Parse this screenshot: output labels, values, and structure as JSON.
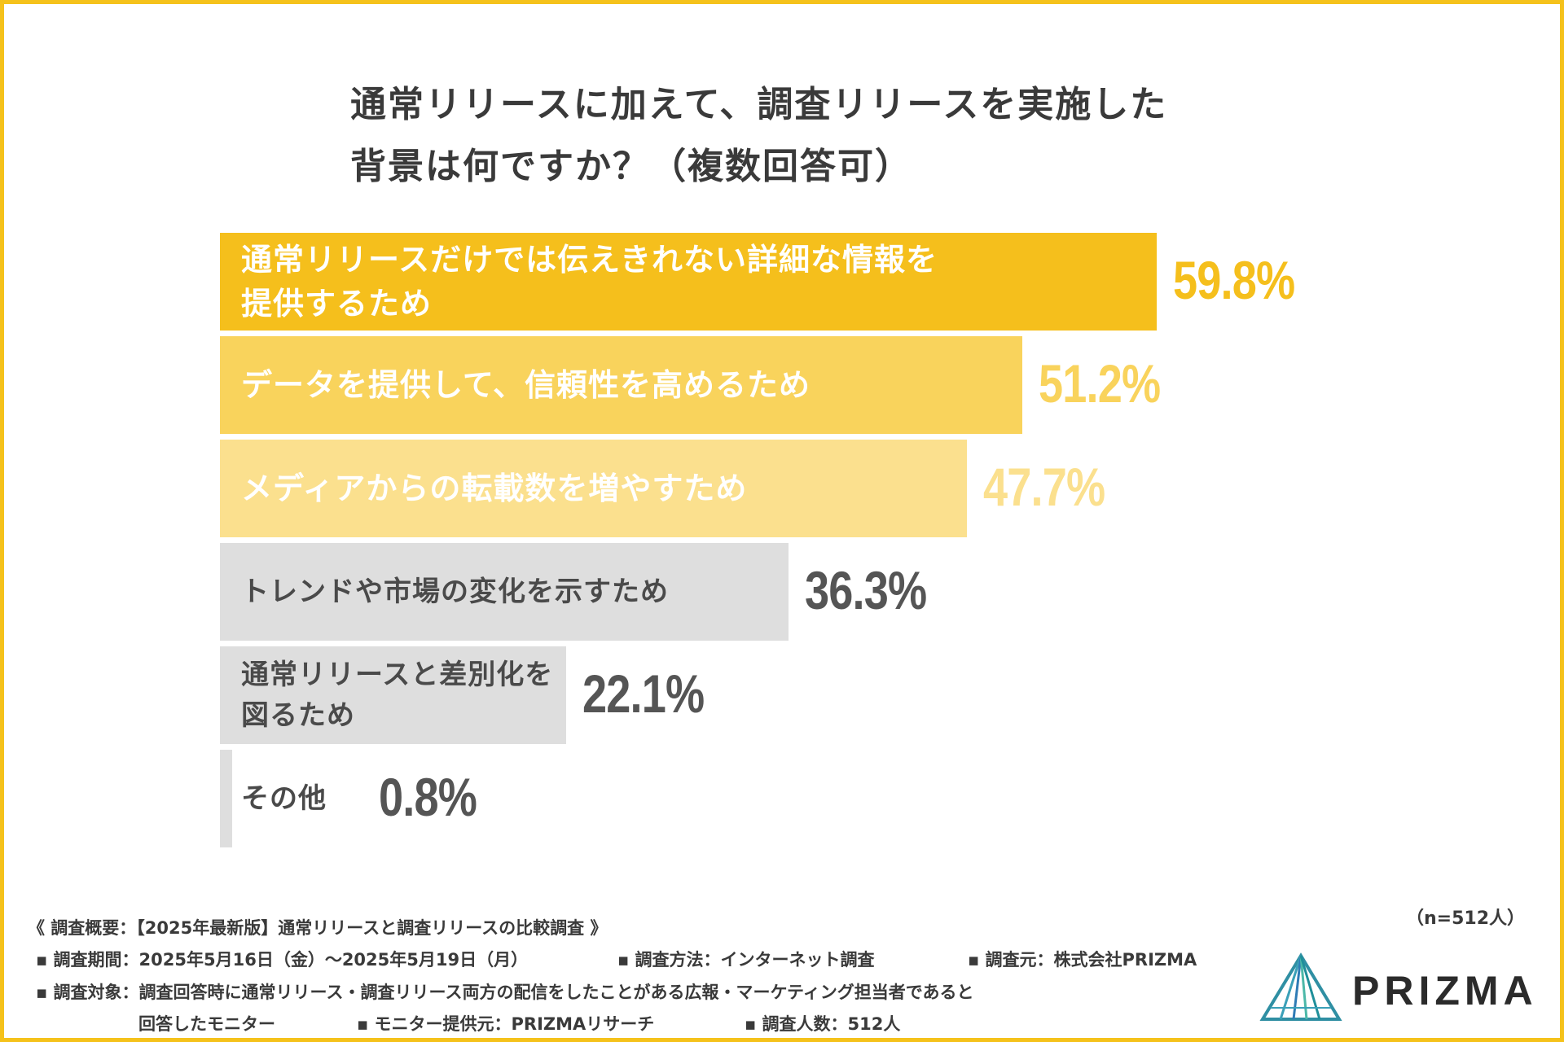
{
  "title": {
    "line1": "通常リリースに加えて、調査リリースを実施した",
    "line2": "背景は何ですか？（複数回答可）"
  },
  "chart_data": {
    "type": "bar",
    "orientation": "horizontal",
    "title": "通常リリースに加えて、調査リリースを実施した背景は何ですか？（複数回答可）",
    "xlim": [
      0,
      100
    ],
    "unit": "%",
    "categories": [
      [
        "通常リリースだけでは伝えきれない詳細な情報を",
        "提供するため"
      ],
      [
        "データを提供して、信頼性を高めるため"
      ],
      [
        "メディアからの転載数を増やすため"
      ],
      [
        "トレンドや市場の変化を示すため"
      ],
      [
        "通常リリースと差別化を",
        "図るため"
      ],
      [
        "その他"
      ]
    ],
    "values": [
      59.8,
      51.2,
      47.7,
      36.3,
      22.1,
      0.8
    ],
    "value_labels": [
      "59.8%",
      "51.2%",
      "47.7%",
      "36.3%",
      "22.1%",
      "0.8%"
    ],
    "bar_colors": [
      "#f5bf1c",
      "#f9d35c",
      "#fbe08e",
      "#dedede",
      "#dedede",
      "#dedede"
    ],
    "label_colors": [
      "#ffffff",
      "#ffffff",
      "#ffffff",
      "#4a4a4a",
      "#4a4a4a",
      "#4a4a4a"
    ],
    "value_colors": [
      "#f5bf1c",
      "#f9d35c",
      "#fbe08e",
      "#555555",
      "#555555",
      "#555555"
    ]
  },
  "footer": {
    "heading": "《 調査概要：【2025年最新版】通常リリースと調査リリースの比較調査 》",
    "row1": [
      "▪ 調査期間：2025年5月16日（金）〜2025年5月19日（月）",
      "▪ 調査方法：インターネット調査",
      "▪ 調査元：株式会社PRIZMA"
    ],
    "row2": "▪ 調査対象：調査回答時に通常リリース・調査リリース両方の配信をしたことがある広報・マーケティング担当者であると",
    "row3": [
      "回答したモニター",
      "▪ モニター提供元：PRIZMAリサーチ",
      "▪ 調査人数：512人"
    ],
    "sample_size": "（n=512人）"
  },
  "logo": {
    "text": "PRIZMA",
    "colors": [
      "#1f8f9a",
      "#3aa0b8",
      "#2e7bb5",
      "#4cb8a8"
    ]
  }
}
